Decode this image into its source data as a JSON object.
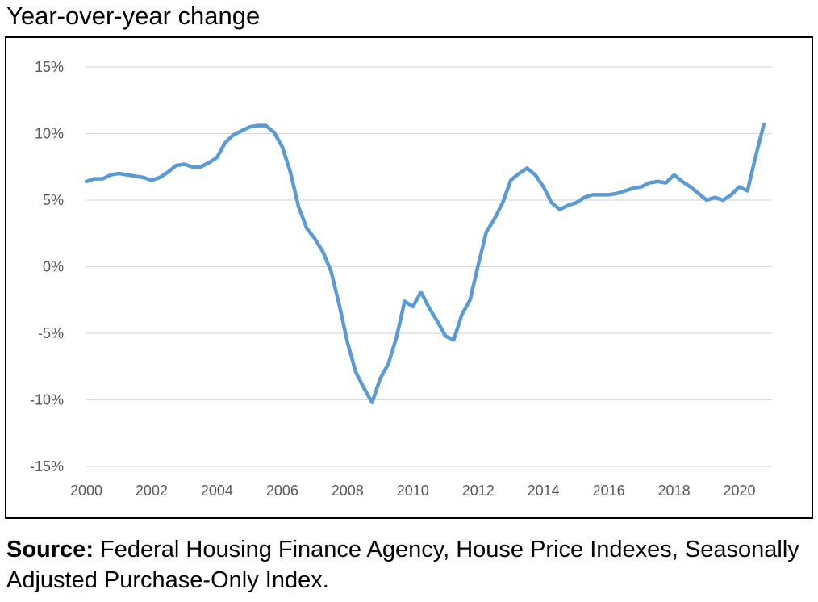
{
  "chart_data": {
    "type": "line",
    "title": "Year-over-year change",
    "xlabel": "",
    "ylabel": "",
    "x_tick_labels": [
      "2000",
      "2002",
      "2004",
      "2006",
      "2008",
      "2010",
      "2012",
      "2014",
      "2016",
      "2018",
      "2020"
    ],
    "y_tick_labels": [
      "15%",
      "10%",
      "5%",
      "0%",
      "-5%",
      "-10%",
      "-15%"
    ],
    "y_tick_values": [
      15,
      10,
      5,
      0,
      -5,
      -10,
      -15
    ],
    "xlim": [
      2000,
      2021
    ],
    "ylim": [
      -15,
      15
    ],
    "grid": true,
    "legend": "none",
    "series": [
      {
        "color": "#5B9BD5",
        "x": [
          2000.0,
          2000.25,
          2000.5,
          2000.75,
          2001.0,
          2001.25,
          2001.5,
          2001.75,
          2002.0,
          2002.25,
          2002.5,
          2002.75,
          2003.0,
          2003.25,
          2003.5,
          2003.75,
          2004.0,
          2004.25,
          2004.5,
          2004.75,
          2005.0,
          2005.25,
          2005.5,
          2005.75,
          2006.0,
          2006.25,
          2006.5,
          2006.75,
          2007.0,
          2007.25,
          2007.5,
          2007.75,
          2008.0,
          2008.25,
          2008.5,
          2008.75,
          2009.0,
          2009.25,
          2009.5,
          2009.75,
          2010.0,
          2010.25,
          2010.5,
          2010.75,
          2011.0,
          2011.25,
          2011.5,
          2011.75,
          2012.0,
          2012.25,
          2012.5,
          2012.75,
          2013.0,
          2013.25,
          2013.5,
          2013.75,
          2014.0,
          2014.25,
          2014.5,
          2014.75,
          2015.0,
          2015.25,
          2015.5,
          2015.75,
          2016.0,
          2016.25,
          2016.5,
          2016.75,
          2017.0,
          2017.25,
          2017.5,
          2017.75,
          2018.0,
          2018.25,
          2018.5,
          2018.75,
          2019.0,
          2019.25,
          2019.5,
          2019.75,
          2020.0,
          2020.25,
          2020.5,
          2020.75
        ],
        "y": [
          6.4,
          6.6,
          6.6,
          6.9,
          7.0,
          6.9,
          6.8,
          6.7,
          6.5,
          6.7,
          7.1,
          7.6,
          7.7,
          7.5,
          7.5,
          7.8,
          8.2,
          9.3,
          9.9,
          10.2,
          10.5,
          10.6,
          10.6,
          10.1,
          9.0,
          7.1,
          4.5,
          2.9,
          2.1,
          1.1,
          -0.4,
          -2.9,
          -5.7,
          -7.9,
          -9.1,
          -10.2,
          -8.4,
          -7.3,
          -5.3,
          -2.6,
          -3.0,
          -1.9,
          -3.1,
          -4.1,
          -5.2,
          -5.5,
          -3.6,
          -2.5,
          0.1,
          2.6,
          3.6,
          4.8,
          6.5,
          7.0,
          7.4,
          6.9,
          6.0,
          4.8,
          4.3,
          4.6,
          4.8,
          5.2,
          5.4,
          5.4,
          5.4,
          5.5,
          5.7,
          5.9,
          6.0,
          6.3,
          6.4,
          6.3,
          6.9,
          6.4,
          6.0,
          5.5,
          5.0,
          5.2,
          5.0,
          5.4,
          6.0,
          5.7,
          8.3,
          10.7
        ]
      }
    ]
  },
  "source": {
    "label": "Source:",
    "text": " Federal Housing Finance Agency, House Price Indexes, Seasonally Adjusted Purchase-Only Index."
  },
  "colors": {
    "line": "#5B9BD5",
    "grid": "#D9D9D9",
    "tick_text": "#595959",
    "frame": "#000000"
  }
}
